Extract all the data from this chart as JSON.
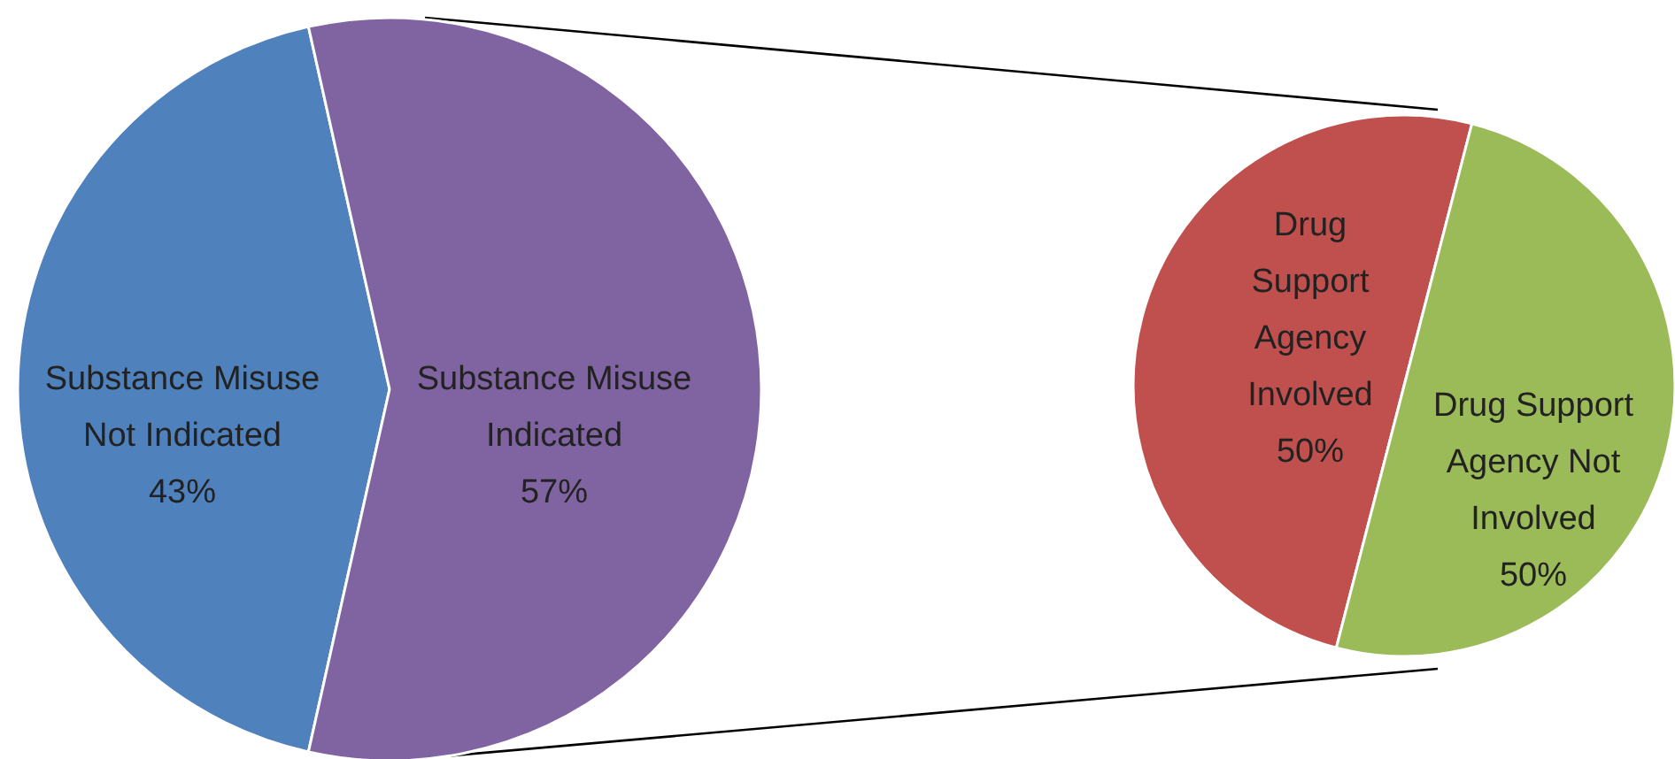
{
  "chart_data": [
    {
      "type": "pie",
      "categories": [
        "Substance Misuse Not Indicated",
        "Substance Misuse Indicated"
      ],
      "values": [
        43,
        57
      ],
      "colors": [
        "#4f81bd",
        "#8064a2"
      ],
      "value_labels": [
        "43%",
        "57%"
      ]
    },
    {
      "type": "pie",
      "categories": [
        "Drug Support Agency Involved",
        "Drug Support Agency Not Involved"
      ],
      "values": [
        50,
        50
      ],
      "colors": [
        "#c0504d",
        "#9bbb59"
      ],
      "value_labels": [
        "50%",
        "50%"
      ]
    }
  ]
}
